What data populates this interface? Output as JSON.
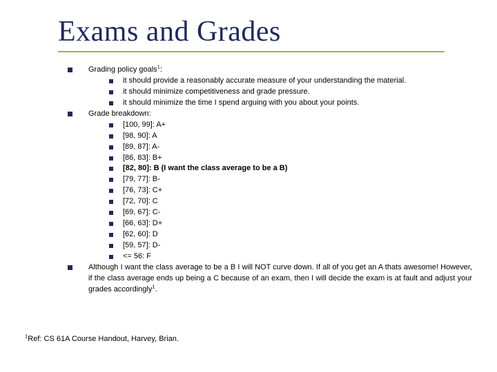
{
  "colors": {
    "title": "#1f2a5a",
    "underline": "#bfa24a",
    "bullet": "#1f2a5a",
    "text": "#000000",
    "background": "#ffffff"
  },
  "typography": {
    "title_font": "Times New Roman",
    "body_font": "Verdana",
    "title_fontsize": 42,
    "body_fontsize": 11
  },
  "title": "Exams and Grades",
  "sections": [
    {
      "heading_pre": "Grading policy goals",
      "heading_sup": "1",
      "heading_post": ":",
      "items": [
        {
          "text": "it should provide a reasonably accurate measure of your understanding the material."
        },
        {
          "text": "it should minimize competitiveness and grade pressure."
        },
        {
          "text": "it should minimize the time I spend arguing with you about your points."
        }
      ]
    },
    {
      "heading": "Grade breakdown:",
      "items": [
        {
          "text": "[100, 99]: A+"
        },
        {
          "text": "[98, 90]: A"
        },
        {
          "text": "[89, 87]: A-"
        },
        {
          "text": "[86, 83]: B+"
        },
        {
          "text": "[82, 80]: B (I want the class average to be a B)",
          "bold": true
        },
        {
          "text": "[79, 77]: B-"
        },
        {
          "text": "[76, 73]: C+"
        },
        {
          "text": "[72, 70]: C"
        },
        {
          "text": "[69, 67]: C-"
        },
        {
          "text": "[66, 63]: D+"
        },
        {
          "text": "[62, 60]: D"
        },
        {
          "text": "[59, 57]: D-"
        },
        {
          "text": "<= 56: F"
        }
      ]
    }
  ],
  "closing_pre": "Although I want the class average to be a B I will NOT curve down. If all of you get an A thats awesome! However, if the class average ends up being a C because of an exam, then I will decide the exam is at fault and adjust your grades accordingly",
  "closing_sup": "1",
  "closing_post": ".",
  "footnote_sup": "1",
  "footnote_text": "Ref:  CS 61A Course Handout, Harvey, Brian."
}
